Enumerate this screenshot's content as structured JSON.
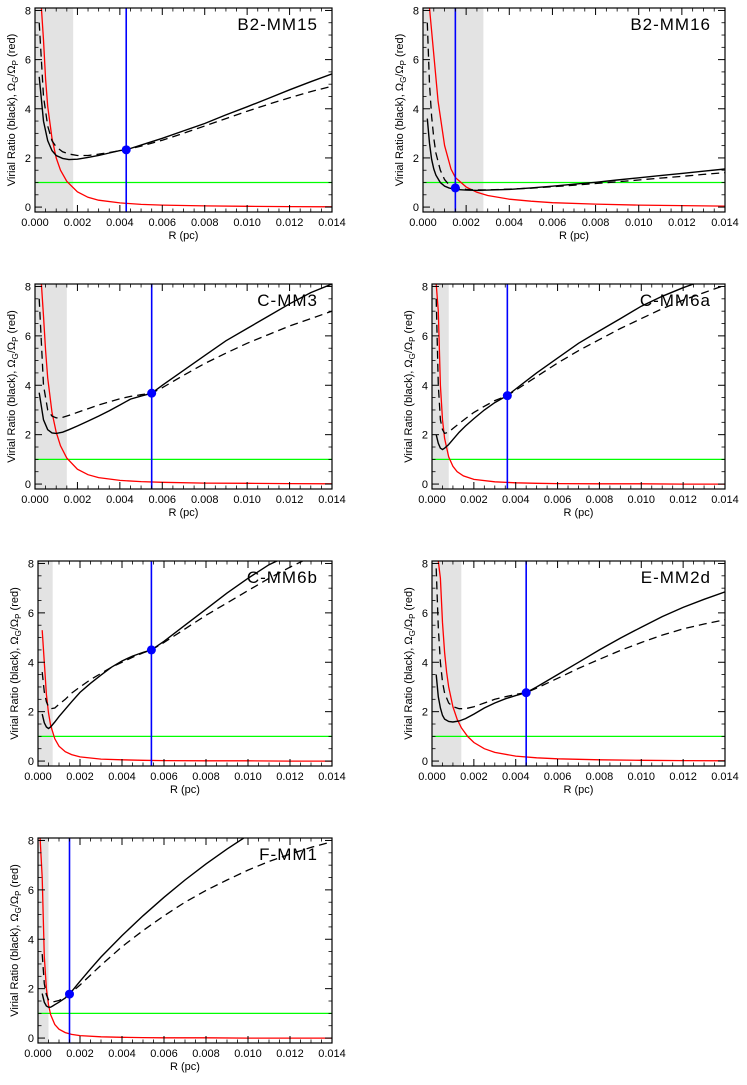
{
  "figure": {
    "layout": "4 rows x 2 columns, last row single panel"
  },
  "shared_axes": {
    "xlabel": "R (pc)",
    "ylabel_main": "Virial Ratio (black), Ω",
    "ylabel_sub1": "G",
    "ylabel_mid": "/Ω",
    "ylabel_sub2": "P",
    "ylabel_end": " (red)",
    "xlim": [
      0,
      0.014
    ],
    "ylim": [
      -0.2,
      8.1
    ],
    "xticks": [
      0,
      0.002,
      0.004,
      0.006,
      0.008,
      0.01,
      0.012,
      0.014
    ],
    "xtick_labels": [
      "0.000",
      "0.002",
      "0.004",
      "0.006",
      "0.008",
      "0.010",
      "0.012",
      "0.014"
    ],
    "yticks": [
      0,
      2,
      4,
      6,
      8
    ],
    "ytick_labels": [
      "0",
      "2",
      "4",
      "6",
      "8"
    ]
  },
  "colors": {
    "solid": "#000000",
    "dashed": "#000000",
    "red": "#ff0000",
    "green": "#00ff00",
    "blue": "#0000ff",
    "shade": "#e3e3e3"
  },
  "chart_data": [
    {
      "type": "line",
      "title": "B2-MM15",
      "shade_x": [
        0,
        0.0018
      ],
      "marker": {
        "x": 0.0043,
        "y": 2.33
      },
      "hline_y": 1.0,
      "ylim": [
        -0.2,
        8.1
      ],
      "solid": {
        "x": [
          0.0002,
          0.0004,
          0.0006,
          0.0008,
          0.001,
          0.0013,
          0.0016,
          0.002,
          0.0025,
          0.003,
          0.0035,
          0.004,
          0.0043,
          0.005,
          0.006,
          0.007,
          0.008,
          0.009,
          0.01,
          0.011,
          0.012,
          0.013,
          0.014
        ],
        "y": [
          5.3,
          3.5,
          2.7,
          2.3,
          2.1,
          1.98,
          1.93,
          1.95,
          2.02,
          2.1,
          2.2,
          2.3,
          2.33,
          2.52,
          2.8,
          3.1,
          3.4,
          3.75,
          4.08,
          4.42,
          4.77,
          5.1,
          5.42
        ]
      },
      "dashed": {
        "x": [
          0.0002,
          0.0004,
          0.0006,
          0.0008,
          0.001,
          0.0013,
          0.0016,
          0.002,
          0.0025,
          0.003,
          0.0035,
          0.004,
          0.0043,
          0.005,
          0.006,
          0.007,
          0.008,
          0.009,
          0.01,
          0.011,
          0.012,
          0.013,
          0.014
        ],
        "y": [
          7.5,
          4.5,
          3.3,
          2.7,
          2.45,
          2.25,
          2.16,
          2.1,
          2.1,
          2.15,
          2.22,
          2.3,
          2.33,
          2.48,
          2.72,
          3.0,
          3.3,
          3.6,
          3.9,
          4.18,
          4.45,
          4.7,
          4.92
        ]
      },
      "red": {
        "x": [
          0.0003,
          0.0004,
          0.0005,
          0.0006,
          0.0008,
          0.001,
          0.0012,
          0.0015,
          0.002,
          0.0025,
          0.003,
          0.004,
          0.005,
          0.006,
          0.008,
          0.01,
          0.012,
          0.014
        ],
        "y": [
          8.1,
          6.8,
          5.2,
          4.1,
          2.8,
          2.0,
          1.5,
          1.05,
          0.62,
          0.4,
          0.28,
          0.17,
          0.11,
          0.08,
          0.05,
          0.03,
          0.02,
          0.01
        ]
      }
    },
    {
      "type": "line",
      "title": "B2-MM16",
      "shade_x": [
        0,
        0.0028
      ],
      "marker": {
        "x": 0.0015,
        "y": 0.78
      },
      "hline_y": 1.0,
      "ylim": [
        -0.2,
        8.1
      ],
      "solid": {
        "x": [
          0.0002,
          0.0003,
          0.0004,
          0.0005,
          0.0006,
          0.0008,
          0.001,
          0.0012,
          0.0015,
          0.002,
          0.0025,
          0.003,
          0.004,
          0.005,
          0.006,
          0.007,
          0.008,
          0.009,
          0.01,
          0.011,
          0.012,
          0.013,
          0.014
        ],
        "y": [
          3.6,
          2.6,
          1.95,
          1.55,
          1.3,
          1.0,
          0.85,
          0.78,
          0.72,
          0.69,
          0.68,
          0.69,
          0.72,
          0.78,
          0.85,
          0.93,
          1.01,
          1.1,
          1.19,
          1.28,
          1.37,
          1.46,
          1.55
        ]
      },
      "dashed": {
        "x": [
          0.0002,
          0.0003,
          0.0004,
          0.0005,
          0.0006,
          0.0008,
          0.001,
          0.0012,
          0.0015,
          0.002,
          0.0025,
          0.003,
          0.004,
          0.005,
          0.006,
          0.007,
          0.008,
          0.009,
          0.01,
          0.011,
          0.012,
          0.013,
          0.014
        ],
        "y": [
          7.5,
          5.0,
          3.7,
          2.8,
          2.2,
          1.5,
          1.12,
          0.92,
          0.8,
          0.72,
          0.7,
          0.7,
          0.73,
          0.77,
          0.83,
          0.89,
          0.96,
          1.03,
          1.1,
          1.18,
          1.25,
          1.33,
          1.4
        ]
      },
      "red": {
        "x": [
          0.0003,
          0.0005,
          0.0007,
          0.001,
          0.0013,
          0.0015,
          0.002,
          0.0025,
          0.003,
          0.004,
          0.005,
          0.006,
          0.008,
          0.01,
          0.012,
          0.014
        ],
        "y": [
          8.1,
          6.2,
          4.3,
          2.5,
          1.55,
          1.2,
          0.82,
          0.6,
          0.47,
          0.32,
          0.24,
          0.18,
          0.12,
          0.08,
          0.06,
          0.04
        ]
      }
    },
    {
      "type": "line",
      "title": "C-MM3",
      "shade_x": [
        0,
        0.0015
      ],
      "marker": {
        "x": 0.0055,
        "y": 3.68
      },
      "hline_y": 1.0,
      "ylim": [
        -0.2,
        8.1
      ],
      "solid": {
        "x": [
          0.0002,
          0.0004,
          0.0006,
          0.0008,
          0.001,
          0.0013,
          0.0016,
          0.002,
          0.0025,
          0.003,
          0.0035,
          0.004,
          0.0045,
          0.005,
          0.0055,
          0.006,
          0.007,
          0.008,
          0.009,
          0.01,
          0.011,
          0.012,
          0.013,
          0.014
        ],
        "y": [
          3.7,
          2.6,
          2.2,
          2.07,
          2.05,
          2.1,
          2.2,
          2.35,
          2.55,
          2.75,
          2.97,
          3.2,
          3.44,
          3.56,
          3.68,
          4.0,
          4.6,
          5.2,
          5.8,
          6.3,
          6.8,
          7.3,
          7.75,
          8.1
        ]
      },
      "dashed": {
        "x": [
          0.0002,
          0.0004,
          0.0006,
          0.0008,
          0.001,
          0.0013,
          0.0016,
          0.002,
          0.0025,
          0.003,
          0.0035,
          0.004,
          0.0045,
          0.005,
          0.0055,
          0.006,
          0.007,
          0.008,
          0.009,
          0.01,
          0.011,
          0.012,
          0.013,
          0.014
        ],
        "y": [
          7.5,
          4.0,
          3.0,
          2.75,
          2.68,
          2.7,
          2.78,
          2.9,
          3.05,
          3.2,
          3.33,
          3.45,
          3.55,
          3.62,
          3.68,
          3.9,
          4.4,
          4.88,
          5.3,
          5.7,
          6.05,
          6.4,
          6.7,
          7.0
        ]
      },
      "red": {
        "x": [
          0.0003,
          0.0004,
          0.0005,
          0.0006,
          0.0008,
          0.001,
          0.0012,
          0.0015,
          0.002,
          0.0025,
          0.003,
          0.004,
          0.005,
          0.006,
          0.008,
          0.01,
          0.012,
          0.014
        ],
        "y": [
          8.1,
          6.8,
          5.4,
          4.3,
          2.9,
          2.1,
          1.55,
          1.05,
          0.6,
          0.38,
          0.26,
          0.15,
          0.1,
          0.07,
          0.04,
          0.03,
          0.02,
          0.01
        ]
      }
    },
    {
      "type": "line",
      "title": "C-MM6a",
      "shade_x": [
        0,
        0.0008
      ],
      "marker": {
        "x": 0.0036,
        "y": 3.58
      },
      "hline_y": 1.0,
      "ylim": [
        -0.2,
        8.1
      ],
      "solid": {
        "x": [
          0.0002,
          0.0003,
          0.0004,
          0.0005,
          0.0006,
          0.0008,
          0.001,
          0.0013,
          0.0016,
          0.002,
          0.0025,
          0.003,
          0.0036,
          0.004,
          0.005,
          0.006,
          0.007,
          0.008,
          0.009,
          0.01,
          0.011,
          0.012,
          0.0125,
          0.013
        ],
        "y": [
          2.0,
          1.65,
          1.45,
          1.4,
          1.45,
          1.6,
          1.8,
          2.1,
          2.35,
          2.65,
          3.0,
          3.3,
          3.58,
          3.85,
          4.5,
          5.1,
          5.7,
          6.2,
          6.7,
          7.2,
          7.6,
          7.95,
          8.1,
          8.2
        ]
      },
      "dashed": {
        "x": [
          0.0002,
          0.0003,
          0.0004,
          0.0005,
          0.0006,
          0.0008,
          0.001,
          0.0013,
          0.0016,
          0.002,
          0.0025,
          0.003,
          0.0036,
          0.004,
          0.005,
          0.006,
          0.007,
          0.008,
          0.009,
          0.01,
          0.011,
          0.012,
          0.013,
          0.014
        ],
        "y": [
          7.5,
          4.0,
          2.6,
          2.2,
          2.05,
          2.1,
          2.25,
          2.45,
          2.65,
          2.9,
          3.15,
          3.38,
          3.58,
          3.8,
          4.35,
          4.9,
          5.4,
          5.85,
          6.3,
          6.7,
          7.1,
          7.45,
          7.75,
          8.05
        ]
      },
      "red": {
        "x": [
          0.0002,
          0.0003,
          0.0004,
          0.0005,
          0.0006,
          0.0008,
          0.001,
          0.0012,
          0.0015,
          0.002,
          0.003,
          0.004,
          0.005,
          0.006,
          0.008,
          0.01,
          0.012,
          0.014
        ],
        "y": [
          8.1,
          7.0,
          4.0,
          2.6,
          1.85,
          1.1,
          0.72,
          0.5,
          0.33,
          0.19,
          0.09,
          0.05,
          0.03,
          0.02,
          0.01,
          0.01,
          0.0,
          0.0
        ]
      }
    },
    {
      "type": "line",
      "title": "C-MM6b",
      "shade_x": [
        0,
        0.0007
      ],
      "marker": {
        "x": 0.0054,
        "y": 4.5
      },
      "hline_y": 1.0,
      "ylim": [
        -0.2,
        8.1
      ],
      "solid": {
        "x": [
          0.0002,
          0.0003,
          0.0004,
          0.0005,
          0.0006,
          0.0008,
          0.001,
          0.0013,
          0.0016,
          0.002,
          0.0025,
          0.003,
          0.0035,
          0.004,
          0.0045,
          0.005,
          0.0054,
          0.006,
          0.007,
          0.008,
          0.009,
          0.01,
          0.011,
          0.0115
        ],
        "y": [
          1.9,
          1.55,
          1.38,
          1.32,
          1.38,
          1.58,
          1.8,
          2.1,
          2.4,
          2.78,
          3.15,
          3.48,
          3.8,
          4.05,
          4.25,
          4.4,
          4.5,
          4.85,
          5.5,
          6.15,
          6.8,
          7.4,
          7.95,
          8.15
        ]
      },
      "dashed": {
        "x": [
          0.0002,
          0.0003,
          0.0004,
          0.0005,
          0.0006,
          0.0008,
          0.001,
          0.0013,
          0.0016,
          0.002,
          0.0025,
          0.003,
          0.0035,
          0.004,
          0.0045,
          0.005,
          0.0054,
          0.006,
          0.007,
          0.008,
          0.009,
          0.01,
          0.011,
          0.012,
          0.0126
        ],
        "y": [
          3.6,
          2.8,
          2.4,
          2.2,
          2.12,
          2.15,
          2.3,
          2.5,
          2.75,
          3.0,
          3.3,
          3.55,
          3.8,
          4.0,
          4.2,
          4.38,
          4.5,
          4.8,
          5.35,
          5.9,
          6.4,
          6.9,
          7.4,
          7.85,
          8.1
        ]
      },
      "red": {
        "x": [
          0.0002,
          0.0003,
          0.0004,
          0.0005,
          0.0006,
          0.0008,
          0.001,
          0.0013,
          0.0016,
          0.002,
          0.003,
          0.004,
          0.005,
          0.006,
          0.008,
          0.01,
          0.012,
          0.014
        ],
        "y": [
          5.3,
          4.0,
          2.7,
          1.95,
          1.45,
          0.9,
          0.6,
          0.38,
          0.26,
          0.17,
          0.08,
          0.05,
          0.03,
          0.02,
          0.01,
          0.01,
          0.0,
          0.0
        ]
      }
    },
    {
      "type": "line",
      "title": "E-MM2d",
      "shade_x": [
        0,
        0.0014
      ],
      "marker": {
        "x": 0.0045,
        "y": 2.77
      },
      "hline_y": 1.0,
      "ylim": [
        -0.2,
        8.1
      ],
      "solid": {
        "x": [
          0.0002,
          0.0003,
          0.0004,
          0.0005,
          0.0006,
          0.0008,
          0.001,
          0.0013,
          0.0016,
          0.002,
          0.0025,
          0.003,
          0.0035,
          0.004,
          0.0045,
          0.005,
          0.006,
          0.007,
          0.008,
          0.009,
          0.01,
          0.011,
          0.012,
          0.013,
          0.014
        ],
        "y": [
          3.5,
          2.6,
          2.15,
          1.85,
          1.7,
          1.6,
          1.58,
          1.62,
          1.72,
          1.9,
          2.15,
          2.35,
          2.52,
          2.65,
          2.77,
          3.0,
          3.5,
          4.0,
          4.5,
          4.98,
          5.42,
          5.85,
          6.22,
          6.55,
          6.85
        ]
      },
      "dashed": {
        "x": [
          0.0002,
          0.0003,
          0.0004,
          0.0005,
          0.0006,
          0.0008,
          0.001,
          0.0013,
          0.0016,
          0.002,
          0.0025,
          0.003,
          0.0035,
          0.004,
          0.0045,
          0.005,
          0.006,
          0.007,
          0.008,
          0.009,
          0.01,
          0.011,
          0.012,
          0.013,
          0.014
        ],
        "y": [
          7.8,
          5.4,
          4.0,
          3.2,
          2.75,
          2.35,
          2.2,
          2.12,
          2.12,
          2.2,
          2.35,
          2.5,
          2.6,
          2.7,
          2.77,
          2.95,
          3.35,
          3.75,
          4.12,
          4.48,
          4.8,
          5.1,
          5.35,
          5.55,
          5.72
        ]
      },
      "red": {
        "x": [
          0.0003,
          0.0004,
          0.0005,
          0.0006,
          0.0007,
          0.0008,
          0.001,
          0.0012,
          0.0014,
          0.0017,
          0.002,
          0.0025,
          0.003,
          0.004,
          0.005,
          0.006,
          0.008,
          0.01,
          0.012,
          0.014
        ],
        "y": [
          8.1,
          7.4,
          5.6,
          4.4,
          3.6,
          3.0,
          2.2,
          1.7,
          1.35,
          1.0,
          0.75,
          0.5,
          0.35,
          0.2,
          0.13,
          0.09,
          0.05,
          0.03,
          0.02,
          0.01
        ]
      }
    },
    {
      "type": "line",
      "title": "F-MM1",
      "shade_x": [
        0,
        0.0005
      ],
      "marker": {
        "x": 0.0015,
        "y": 1.78
      },
      "hline_y": 1.0,
      "ylim": [
        -0.2,
        8.1
      ],
      "solid": {
        "x": [
          0.0002,
          0.0003,
          0.0004,
          0.0005,
          0.0006,
          0.0007,
          0.0008,
          0.001,
          0.0013,
          0.0015,
          0.002,
          0.0025,
          0.003,
          0.004,
          0.005,
          0.006,
          0.007,
          0.008,
          0.009,
          0.0098
        ],
        "y": [
          1.8,
          1.45,
          1.3,
          1.25,
          1.25,
          1.3,
          1.35,
          1.45,
          1.62,
          1.78,
          2.3,
          2.8,
          3.28,
          4.15,
          4.95,
          5.7,
          6.4,
          7.05,
          7.65,
          8.1
        ]
      },
      "dashed": {
        "x": [
          0.0002,
          0.0003,
          0.0004,
          0.0005,
          0.0006,
          0.0007,
          0.0008,
          0.001,
          0.0013,
          0.0015,
          0.002,
          0.0025,
          0.003,
          0.004,
          0.005,
          0.006,
          0.007,
          0.008,
          0.009,
          0.01,
          0.011,
          0.012,
          0.013,
          0.014
        ],
        "y": [
          3.4,
          2.2,
          1.75,
          1.55,
          1.48,
          1.47,
          1.48,
          1.52,
          1.65,
          1.78,
          2.15,
          2.55,
          2.95,
          3.7,
          4.35,
          4.95,
          5.5,
          5.98,
          6.4,
          6.8,
          7.15,
          7.45,
          7.72,
          7.95
        ]
      },
      "red": {
        "x": [
          0.0001,
          0.0002,
          0.0003,
          0.0004,
          0.0005,
          0.0006,
          0.0008,
          0.001,
          0.0013,
          0.0016,
          0.002,
          0.003,
          0.004,
          0.005,
          0.006,
          0.008,
          0.01,
          0.012,
          0.014
        ],
        "y": [
          8.1,
          6.5,
          3.3,
          2.0,
          1.35,
          0.95,
          0.55,
          0.36,
          0.22,
          0.15,
          0.1,
          0.05,
          0.03,
          0.02,
          0.01,
          0.01,
          0.0,
          0.0,
          0.0
        ]
      }
    }
  ]
}
